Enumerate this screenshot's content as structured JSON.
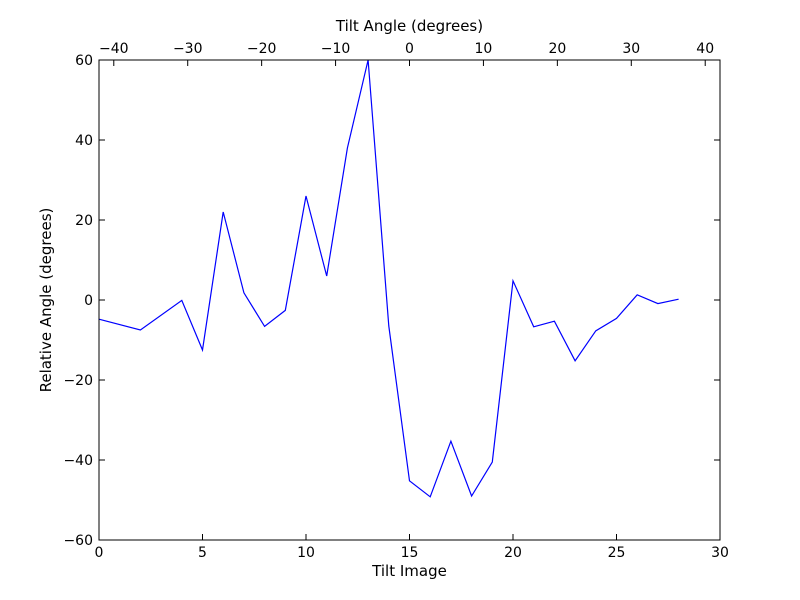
{
  "chart_data": {
    "type": "line",
    "title": "",
    "xlabel": "Tilt Image",
    "ylabel": "Relative Angle (degrees)",
    "x2label": "Tilt Angle (degrees)",
    "xlim": [
      0,
      30
    ],
    "ylim": [
      -60,
      60
    ],
    "x2lim": [
      -42,
      42
    ],
    "xticks": [
      0,
      5,
      10,
      15,
      20,
      25,
      30
    ],
    "yticks": [
      -60,
      -40,
      -20,
      0,
      20,
      40,
      60
    ],
    "x2ticks": [
      -40,
      -30,
      -20,
      -10,
      0,
      10,
      20,
      30,
      40
    ],
    "xtick_labels": [
      "0",
      "5",
      "10",
      "15",
      "20",
      "25",
      "30"
    ],
    "ytick_labels": [
      "−60",
      "−40",
      "−20",
      "0",
      "20",
      "40",
      "60"
    ],
    "x2tick_labels": [
      "−40",
      "−30",
      "−20",
      "−10",
      "0",
      "10",
      "20",
      "30",
      "40"
    ],
    "grid": false,
    "series": [
      {
        "color": "#0000ff",
        "x": [
          0,
          2,
          4,
          5,
          6,
          7,
          8,
          9,
          10,
          11,
          12,
          13,
          14,
          15,
          16,
          17,
          18,
          19,
          20,
          21,
          22,
          23,
          24,
          25,
          26,
          27,
          28
        ],
        "y": [
          -4.8,
          -7.5,
          -0.1,
          -12.5,
          22,
          1.8,
          -6.6,
          -2.6,
          26,
          6,
          38,
          60,
          -6.5,
          -45.2,
          -49.2,
          -35.3,
          -49,
          -40.5,
          4.8,
          -6.7,
          -5.3,
          -15.2,
          -7.7,
          -4.6,
          1.3,
          -0.9,
          0.2
        ]
      }
    ]
  }
}
